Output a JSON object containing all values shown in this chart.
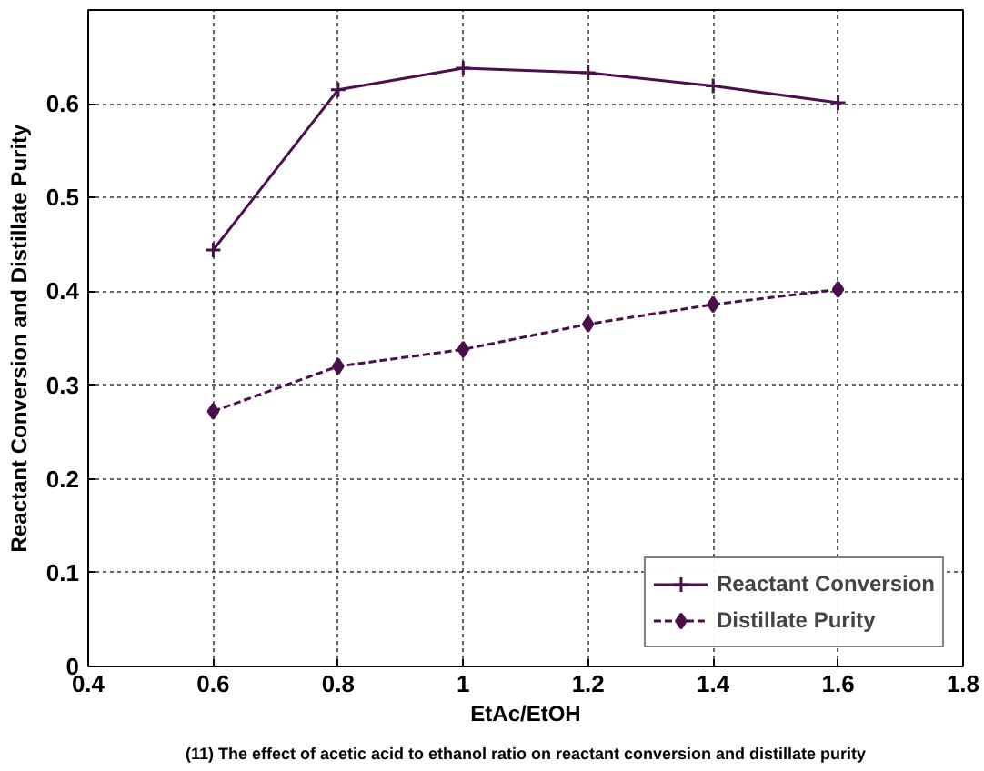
{
  "chart_data": {
    "type": "line",
    "xlabel": "EtAc/EtOH",
    "ylabel": "Reactant Conversion and Distillate Purity",
    "x": [
      0.6,
      0.8,
      1.0,
      1.2,
      1.4,
      1.6
    ],
    "series": [
      {
        "name": "Reactant Conversion",
        "color": "#4b0f4b",
        "values": [
          0.444,
          0.615,
          0.638,
          0.633,
          0.619,
          0.601
        ],
        "marker": "cross",
        "line_style": "solid"
      },
      {
        "name": "Distillate Purity",
        "color": "#4b0f4b",
        "values": [
          0.272,
          0.32,
          0.338,
          0.365,
          0.386,
          0.402
        ],
        "marker": "diamond",
        "line_style": "dashed"
      }
    ],
    "xlim": [
      0.4,
      1.8
    ],
    "xticks": [
      0.4,
      0.6,
      0.8,
      1,
      1.2,
      1.4,
      1.6,
      1.8
    ],
    "ylim": [
      0,
      0.7
    ],
    "yticks": [
      0,
      0.1,
      0.2,
      0.3,
      0.4,
      0.5,
      0.6
    ],
    "grid": true,
    "legend": "bottom right",
    "annotations": [
      "(11) The effect of acetic acid to ethanol ratio on reactant conversion and distillate purity"
    ]
  }
}
